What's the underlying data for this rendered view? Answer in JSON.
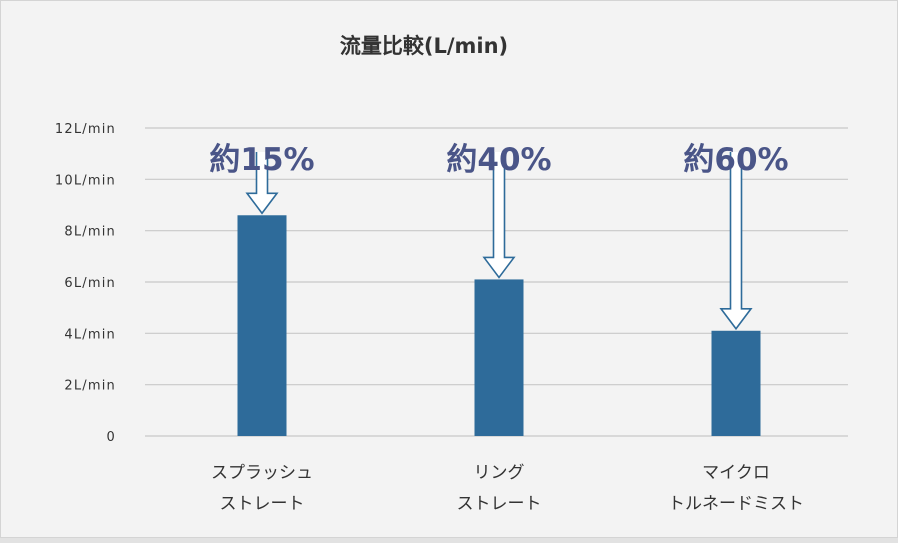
{
  "chart_data": {
    "type": "bar",
    "title": "流量比較(L/min)",
    "categories": [
      [
        "スプラッシュ",
        "ストレート"
      ],
      [
        "リング",
        "ストレート"
      ],
      [
        "マイクロ",
        "トルネードミスト"
      ]
    ],
    "values": [
      8.6,
      6.1,
      4.1
    ],
    "ylim": [
      0,
      12
    ],
    "yticks": [
      {
        "value": 0,
        "label": "0"
      },
      {
        "value": 2,
        "label": "2L/min"
      },
      {
        "value": 4,
        "label": "4L/min"
      },
      {
        "value": 6,
        "label": "6L/min"
      },
      {
        "value": 8,
        "label": "8L/min"
      },
      {
        "value": 10,
        "label": "10L/min"
      },
      {
        "value": 12,
        "label": "12L/min"
      }
    ],
    "annotations": [
      "約15%",
      "約40%",
      "約60%"
    ],
    "grid": true,
    "colors": {
      "bar": "#2e6b9a",
      "grid": "#c8c8c8",
      "arrow": "#2e6b9a",
      "annotation": "#4a5588"
    }
  }
}
